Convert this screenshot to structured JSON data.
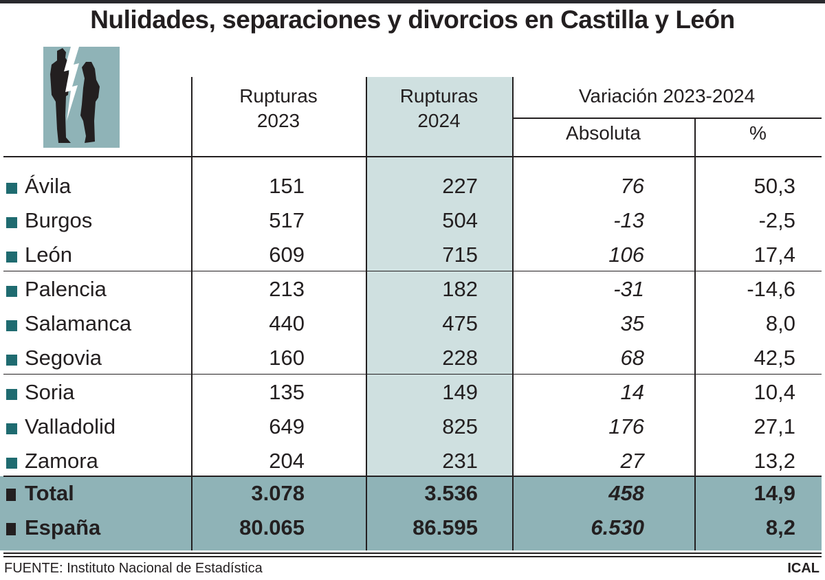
{
  "title": "Nulidades, separaciones y divorcios en Castilla y León",
  "colors": {
    "highlight_column": "#cfe0e0",
    "total_band": "#8fb3b7",
    "bullet": "#1f6b70",
    "text": "#231f20"
  },
  "icon": "couple-breakup-lightning-icon",
  "headers": {
    "col1": [
      "Rupturas",
      "2023"
    ],
    "col2": [
      "Rupturas",
      "2024"
    ],
    "group": "Variación 2023-2024",
    "col3": "Absoluta",
    "col4": "%"
  },
  "rows": [
    {
      "label": "Ávila",
      "r2023": "151",
      "r2024": "227",
      "abs": "76",
      "pct": "50,3"
    },
    {
      "label": "Burgos",
      "r2023": "517",
      "r2024": "504",
      "abs": "-13",
      "pct": "-2,5"
    },
    {
      "label": "León",
      "r2023": "609",
      "r2024": "715",
      "abs": "106",
      "pct": "17,4"
    },
    {
      "label": "Palencia",
      "r2023": "213",
      "r2024": "182",
      "abs": "-31",
      "pct": "-14,6"
    },
    {
      "label": "Salamanca",
      "r2023": "440",
      "r2024": "475",
      "abs": "35",
      "pct": "8,0"
    },
    {
      "label": "Segovia",
      "r2023": "160",
      "r2024": "228",
      "abs": "68",
      "pct": "42,5"
    },
    {
      "label": "Soria",
      "r2023": "135",
      "r2024": "149",
      "abs": "14",
      "pct": "10,4"
    },
    {
      "label": "Valladolid",
      "r2023": "649",
      "r2024": "825",
      "abs": "176",
      "pct": "27,1"
    },
    {
      "label": "Zamora",
      "r2023": "204",
      "r2024": "231",
      "abs": "27",
      "pct": "13,2"
    }
  ],
  "totals": [
    {
      "label": "Total",
      "r2023": "3.078",
      "r2024": "3.536",
      "abs": "458",
      "pct": "14,9"
    },
    {
      "label": "España",
      "r2023": "80.065",
      "r2024": "86.595",
      "abs": "6.530",
      "pct": "8,2"
    }
  ],
  "footer": {
    "source": "FUENTE: Instituto Nacional de Estadística",
    "credit": "ICAL"
  },
  "chart_data": {
    "type": "table",
    "title": "Nulidades, separaciones y divorcios en Castilla y León",
    "columns": [
      "",
      "Rupturas 2023",
      "Rupturas 2024",
      "Variación 2023-2024 Absoluta",
      "Variación 2023-2024 %"
    ],
    "rows": [
      [
        "Ávila",
        151,
        227,
        76,
        50.3
      ],
      [
        "Burgos",
        517,
        504,
        -13,
        -2.5
      ],
      [
        "León",
        609,
        715,
        106,
        17.4
      ],
      [
        "Palencia",
        213,
        182,
        -31,
        -14.6
      ],
      [
        "Salamanca",
        440,
        475,
        35,
        8.0
      ],
      [
        "Segovia",
        160,
        228,
        68,
        42.5
      ],
      [
        "Soria",
        135,
        149,
        14,
        10.4
      ],
      [
        "Valladolid",
        649,
        825,
        176,
        27.1
      ],
      [
        "Zamora",
        204,
        231,
        27,
        13.2
      ],
      [
        "Total",
        3078,
        3536,
        458,
        14.9
      ],
      [
        "España",
        80065,
        86595,
        6530,
        8.2
      ]
    ]
  }
}
